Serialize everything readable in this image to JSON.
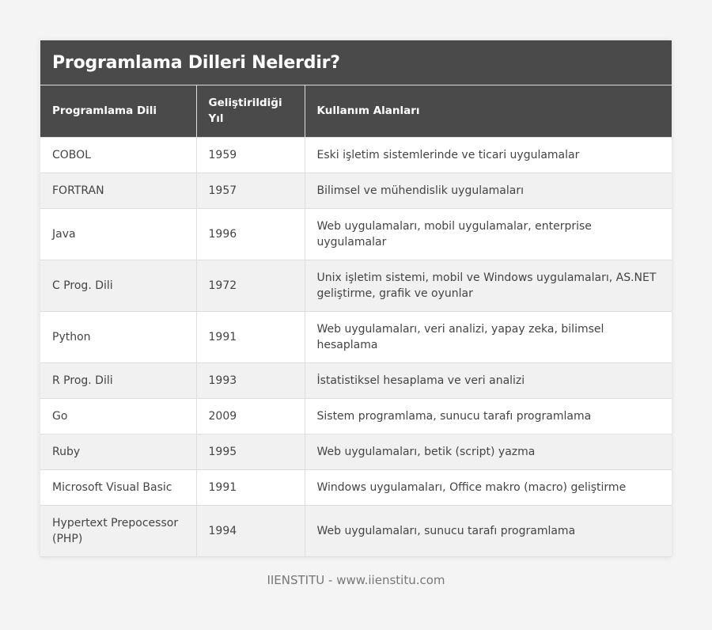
{
  "title": "Programlama Dilleri Nelerdir?",
  "colors": {
    "header_bg": "#4a4a4a",
    "header_text": "#ffffff",
    "row_odd": "#ffffff",
    "row_even": "#f1f1f1",
    "page_bg": "#f4f4f4",
    "text": "#444444"
  },
  "table": {
    "headers": [
      "Programlama Dili",
      "Geliştirildiği Yıl",
      "Kullanım Alanları"
    ],
    "rows": [
      {
        "language": "COBOL",
        "year": "1959",
        "usage": "Eski işletim sistemlerinde ve ticari uygulamalar"
      },
      {
        "language": "FORTRAN",
        "year": "1957",
        "usage": "Bilimsel ve mühendislik uygulamaları"
      },
      {
        "language": "Java",
        "year": "1996",
        "usage": "Web uygulamaları, mobil uygulamalar, enterprise uygulamalar"
      },
      {
        "language": "C Prog. Dili",
        "year": "1972",
        "usage": "Unix işletim sistemi, mobil ve Windows uygulamaları, AS.NET geliştirme, grafik ve oyunlar"
      },
      {
        "language": "Python",
        "year": "1991",
        "usage": "Web uygulamaları, veri analizi, yapay zeka, bilimsel hesaplama"
      },
      {
        "language": "R Prog. Dili",
        "year": "1993",
        "usage": "İstatistiksel hesaplama ve veri analizi"
      },
      {
        "language": "Go",
        "year": "2009",
        "usage": "Sistem programlama, sunucu tarafı programlama"
      },
      {
        "language": "Ruby",
        "year": "1995",
        "usage": "Web uygulamaları, betik (script) yazma"
      },
      {
        "language": "Microsoft Visual Basic",
        "year": "1991",
        "usage": "Windows uygulamaları, Office makro (macro) geliştirme"
      },
      {
        "language": "Hypertext Prepocessor (PHP)",
        "year": "1994",
        "usage": "Web uygulamaları, sunucu tarafı programlama"
      }
    ]
  },
  "footer": "IIENSTITU - www.iienstitu.com"
}
